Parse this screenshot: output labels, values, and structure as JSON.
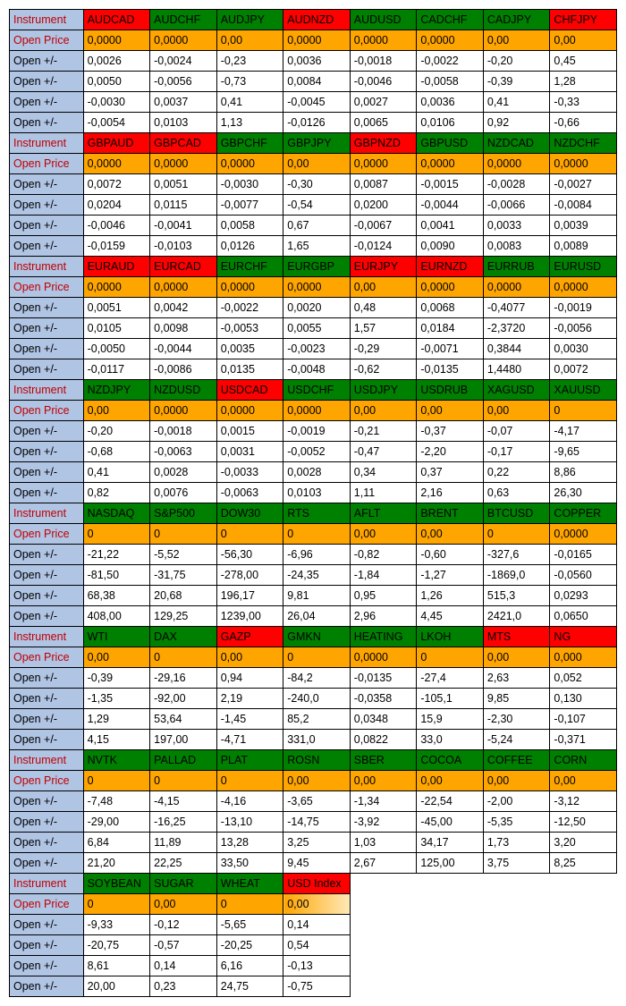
{
  "row_label_bg": "#b0c4e4",
  "instrument_label": "Instrument",
  "open_price_label": "Open Price",
  "open_pm_label": "Open +/-",
  "label_color": "#c00000",
  "green_bg": "#008000",
  "red_bg": "#ff0000",
  "orange_bg": "#ffa500",
  "white_bg": "#ffffff",
  "black_text": "#000000",
  "usd_gradient_start": "#ffa500",
  "usd_gradient_end": "#ffe9b8",
  "sections": [
    {
      "headers": [
        {
          "label": "AUDCAD",
          "bg": "#ff0000"
        },
        {
          "label": "AUDCHF",
          "bg": "#008000"
        },
        {
          "label": "AUDJPY",
          "bg": "#008000"
        },
        {
          "label": "AUDNZD",
          "bg": "#ff0000"
        },
        {
          "label": "AUDUSD",
          "bg": "#008000"
        },
        {
          "label": "CADCHF",
          "bg": "#008000"
        },
        {
          "label": "CADJPY",
          "bg": "#008000"
        },
        {
          "label": "CHFJPY",
          "bg": "#ff0000"
        }
      ],
      "open_price": [
        "0,0000",
        "0,0000",
        "0,00",
        "0,0000",
        "0,0000",
        "0,0000",
        "0,00",
        "0,00"
      ],
      "rows": [
        [
          "0,0026",
          "-0,0024",
          "-0,23",
          "0,0036",
          "-0,0018",
          "-0,0022",
          "-0,20",
          "0,45"
        ],
        [
          "0,0050",
          "-0,0056",
          "-0,73",
          "0,0084",
          "-0,0046",
          "-0,0058",
          "-0,39",
          "1,28"
        ],
        [
          "-0,0030",
          "0,0037",
          "0,41",
          "-0,0045",
          "0,0027",
          "0,0036",
          "0,41",
          "-0,33"
        ],
        [
          "-0,0054",
          "0,0103",
          "1,13",
          "-0,0126",
          "0,0065",
          "0,0106",
          "0,92",
          "-0,66"
        ]
      ]
    },
    {
      "headers": [
        {
          "label": "GBPAUD",
          "bg": "#ff0000"
        },
        {
          "label": "GBPCAD",
          "bg": "#ff0000"
        },
        {
          "label": "GBPCHF",
          "bg": "#008000"
        },
        {
          "label": "GBPJPY",
          "bg": "#008000"
        },
        {
          "label": "GBPNZD",
          "bg": "#ff0000"
        },
        {
          "label": "GBPUSD",
          "bg": "#008000"
        },
        {
          "label": "NZDCAD",
          "bg": "#008000"
        },
        {
          "label": "NZDCHF",
          "bg": "#008000"
        }
      ],
      "open_price": [
        "0,0000",
        "0,0000",
        "0,0000",
        "0,00",
        "0,0000",
        "0,0000",
        "0,0000",
        "0,0000"
      ],
      "rows": [
        [
          "0,0072",
          "0,0051",
          "-0,0030",
          "-0,30",
          "0,0087",
          "-0,0015",
          "-0,0028",
          "-0,0027"
        ],
        [
          "0,0204",
          "0,0115",
          "-0,0077",
          "-0,54",
          "0,0200",
          "-0,0044",
          "-0,0066",
          "-0,0084"
        ],
        [
          "-0,0046",
          "-0,0041",
          "0,0058",
          "0,67",
          "-0,0067",
          "0,0041",
          "0,0033",
          "0,0039"
        ],
        [
          "-0,0159",
          "-0,0103",
          "0,0126",
          "1,65",
          "-0,0124",
          "0,0090",
          "0,0083",
          "0,0089"
        ]
      ]
    },
    {
      "headers": [
        {
          "label": "EURAUD",
          "bg": "#ff0000"
        },
        {
          "label": "EURCAD",
          "bg": "#ff0000"
        },
        {
          "label": "EURCHF",
          "bg": "#008000"
        },
        {
          "label": "EURGBP",
          "bg": "#008000"
        },
        {
          "label": "EURJPY",
          "bg": "#ff0000"
        },
        {
          "label": "EURNZD",
          "bg": "#ff0000"
        },
        {
          "label": "EURRUB",
          "bg": "#008000"
        },
        {
          "label": "EURUSD",
          "bg": "#008000"
        }
      ],
      "open_price": [
        "0,0000",
        "0,0000",
        "0,0000",
        "0,0000",
        "0,00",
        "0,0000",
        "0,0000",
        "0,0000"
      ],
      "rows": [
        [
          "0,0051",
          "0,0042",
          "-0,0022",
          "0,0020",
          "0,48",
          "0,0068",
          "-0,4077",
          "-0,0019"
        ],
        [
          "0,0105",
          "0,0098",
          "-0,0053",
          "0,0055",
          "1,57",
          "0,0184",
          "-2,3720",
          "-0,0056"
        ],
        [
          "-0,0050",
          "-0,0044",
          "0,0035",
          "-0,0023",
          "-0,29",
          "-0,0071",
          "0,3844",
          "0,0030"
        ],
        [
          "-0,0117",
          "-0,0086",
          "0,0135",
          "-0,0048",
          "-0,62",
          "-0,0135",
          "1,4480",
          "0,0072"
        ]
      ]
    },
    {
      "headers": [
        {
          "label": "NZDJPY",
          "bg": "#008000"
        },
        {
          "label": "NZDUSD",
          "bg": "#008000"
        },
        {
          "label": "USDCAD",
          "bg": "#ff0000"
        },
        {
          "label": "USDCHF",
          "bg": "#008000"
        },
        {
          "label": "USDJPY",
          "bg": "#008000"
        },
        {
          "label": "USDRUB",
          "bg": "#008000"
        },
        {
          "label": "XAGUSD",
          "bg": "#008000"
        },
        {
          "label": "XAUUSD",
          "bg": "#008000"
        }
      ],
      "open_price": [
        "0,00",
        "0,0000",
        "0,0000",
        "0,0000",
        "0,00",
        "0,00",
        "0,00",
        "0"
      ],
      "rows": [
        [
          "-0,20",
          "-0,0018",
          "0,0015",
          "-0,0019",
          "-0,21",
          "-0,37",
          "-0,07",
          "-4,17"
        ],
        [
          "-0,68",
          "-0,0063",
          "0,0031",
          "-0,0052",
          "-0,47",
          "-2,20",
          "-0,17",
          "-9,65"
        ],
        [
          "0,41",
          "0,0028",
          "-0,0033",
          "0,0028",
          "0,34",
          "0,37",
          "0,22",
          "8,86"
        ],
        [
          "0,82",
          "0,0076",
          "-0,0063",
          "0,0103",
          "1,11",
          "2,16",
          "0,63",
          "26,30"
        ]
      ]
    },
    {
      "headers": [
        {
          "label": "NASDAQ",
          "bg": "#008000"
        },
        {
          "label": "S&P500",
          "bg": "#008000"
        },
        {
          "label": "DOW30",
          "bg": "#008000"
        },
        {
          "label": "RTS",
          "bg": "#008000"
        },
        {
          "label": "AFLT",
          "bg": "#008000"
        },
        {
          "label": "BRENT",
          "bg": "#008000"
        },
        {
          "label": "BTCUSD",
          "bg": "#008000"
        },
        {
          "label": "COPPER",
          "bg": "#008000"
        }
      ],
      "open_price": [
        "0",
        "0",
        "0",
        "0",
        "0,00",
        "0,00",
        "0",
        "0,0000"
      ],
      "rows": [
        [
          "-21,22",
          "-5,52",
          "-56,30",
          "-6,96",
          "-0,82",
          "-0,60",
          "-327,6",
          "-0,0165"
        ],
        [
          "-81,50",
          "-31,75",
          "-278,00",
          "-24,35",
          "-1,84",
          "-1,27",
          "-1869,0",
          "-0,0560"
        ],
        [
          "68,38",
          "20,68",
          "196,17",
          "9,81",
          "0,95",
          "1,26",
          "515,3",
          "0,0293"
        ],
        [
          "408,00",
          "129,25",
          "1239,00",
          "26,04",
          "2,96",
          "4,45",
          "2421,0",
          "0,0650"
        ]
      ]
    },
    {
      "headers": [
        {
          "label": "WTI",
          "bg": "#008000"
        },
        {
          "label": "DAX",
          "bg": "#008000"
        },
        {
          "label": "GAZP",
          "bg": "#ff0000"
        },
        {
          "label": "GMKN",
          "bg": "#008000"
        },
        {
          "label": "HEATING",
          "bg": "#008000"
        },
        {
          "label": "LKOH",
          "bg": "#008000"
        },
        {
          "label": "MTS",
          "bg": "#ff0000"
        },
        {
          "label": "NG",
          "bg": "#ff0000"
        }
      ],
      "open_price": [
        "0,00",
        "0",
        "0,00",
        "0",
        "0,0000",
        "0",
        "0,00",
        "0,000"
      ],
      "rows": [
        [
          "-0,39",
          "-29,16",
          "0,94",
          "-84,2",
          "-0,0135",
          "-27,4",
          "2,63",
          "0,052"
        ],
        [
          "-1,35",
          "-92,00",
          "2,19",
          "-240,0",
          "-0,0358",
          "-105,1",
          "9,85",
          "0,130"
        ],
        [
          "1,29",
          "53,64",
          "-1,45",
          "85,2",
          "0,0348",
          "15,9",
          "-2,30",
          "-0,107"
        ],
        [
          "4,15",
          "197,00",
          "-4,71",
          "331,0",
          "0,0822",
          "33,0",
          "-5,24",
          "-0,371"
        ]
      ]
    },
    {
      "headers": [
        {
          "label": "NVTK",
          "bg": "#008000"
        },
        {
          "label": "PALLAD",
          "bg": "#008000"
        },
        {
          "label": "PLAT",
          "bg": "#008000"
        },
        {
          "label": "ROSN",
          "bg": "#008000"
        },
        {
          "label": "SBER",
          "bg": "#008000"
        },
        {
          "label": "COCOA",
          "bg": "#008000"
        },
        {
          "label": "COFFEE",
          "bg": "#008000"
        },
        {
          "label": "CORN",
          "bg": "#008000"
        }
      ],
      "open_price": [
        "0",
        "0",
        "0",
        "0,00",
        "0,00",
        "0,00",
        "0,00",
        "0,00"
      ],
      "rows": [
        [
          "-7,48",
          "-4,15",
          "-4,16",
          "-3,65",
          "-1,34",
          "-22,54",
          "-2,00",
          "-3,12"
        ],
        [
          "-29,00",
          "-16,25",
          "-13,10",
          "-14,75",
          "-3,92",
          "-45,00",
          "-5,35",
          "-12,50"
        ],
        [
          "6,84",
          "11,89",
          "13,28",
          "3,25",
          "1,03",
          "34,17",
          "1,73",
          "3,20"
        ],
        [
          "21,20",
          "22,25",
          "33,50",
          "9,45",
          "2,67",
          "125,00",
          "3,75",
          "8,25"
        ]
      ]
    },
    {
      "headers": [
        {
          "label": "SOYBEAN",
          "bg": "#008000"
        },
        {
          "label": "SUGAR",
          "bg": "#008000"
        },
        {
          "label": "WHEAT",
          "bg": "#008000"
        },
        {
          "label": "USD Index",
          "bg": "#ff0000",
          "gradient": true
        }
      ],
      "open_price": [
        "0",
        "0,00",
        "0",
        "0,00"
      ],
      "open_price_last_gradient": true,
      "rows": [
        [
          "-9,33",
          "-0,12",
          "-5,65",
          "0,14"
        ],
        [
          "-20,75",
          "-0,57",
          "-20,25",
          "0,54"
        ],
        [
          "8,61",
          "0,14",
          "6,16",
          "-0,13"
        ],
        [
          "20,00",
          "0,23",
          "24,75",
          "-0,75"
        ]
      ]
    }
  ]
}
